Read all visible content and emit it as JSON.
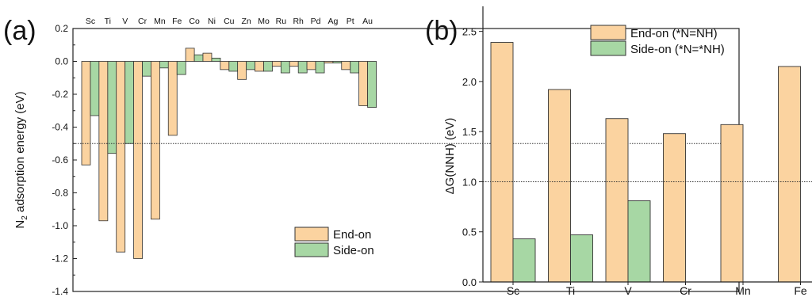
{
  "chart_data": [
    {
      "panel_label": "(a)",
      "type": "bar",
      "categories": [
        "Sc",
        "Ti",
        "V",
        "Cr",
        "Mn",
        "Fe",
        "Co",
        "Ni",
        "Cu",
        "Zn",
        "Mo",
        "Ru",
        "Rh",
        "Pd",
        "Ag",
        "Pt",
        "Au"
      ],
      "series": [
        {
          "name": "End-on",
          "color": "#fbd3a0",
          "values": [
            -0.63,
            -0.97,
            -1.16,
            -1.2,
            -0.96,
            -0.45,
            0.08,
            0.05,
            -0.05,
            -0.11,
            -0.06,
            -0.03,
            -0.03,
            -0.05,
            -0.01,
            -0.05,
            -0.27
          ]
        },
        {
          "name": "Side-on",
          "color": "#a7d7a4",
          "values": [
            -0.33,
            -0.56,
            -0.5,
            -0.09,
            -0.04,
            -0.08,
            0.04,
            0.02,
            -0.06,
            -0.05,
            -0.06,
            -0.07,
            -0.07,
            -0.07,
            -0.01,
            -0.07,
            -0.28
          ]
        }
      ],
      "ylabel_main": "N",
      "ylabel_sub": "2",
      "ylabel_rest": " adsorption energy (eV)",
      "ylim": [
        -1.4,
        0.2
      ],
      "yticks": [
        -1.4,
        -1.2,
        -1.0,
        -0.8,
        -0.6,
        -0.4,
        -0.2,
        0.0,
        0.2
      ],
      "ytick_labels": [
        "-1.4",
        "-1.2",
        "-1.0",
        "-0.8",
        "-0.6",
        "-0.4",
        "-0.2",
        "0.0",
        "0.2"
      ],
      "reference_line": -0.5,
      "legend_position": "bottom-right",
      "category_labels_position": "top"
    },
    {
      "panel_label": "(b)",
      "type": "bar",
      "categories": [
        "Sc",
        "Ti",
        "V",
        "Cr",
        "Mn",
        "Fe"
      ],
      "series": [
        {
          "name": "End-on (*N=NH)",
          "color": "#fbd3a0",
          "values": [
            2.39,
            1.92,
            1.63,
            1.48,
            1.57,
            2.15
          ]
        },
        {
          "name": "Side-on (*N=*NH)",
          "color": "#a7d7a4",
          "values": [
            0.43,
            0.47,
            0.81,
            null,
            null,
            null
          ]
        }
      ],
      "ylabel": "ΔG(NNH) (eV)",
      "ylim": [
        0,
        2.75
      ],
      "yticks": [
        0.0,
        0.5,
        1.0,
        1.5,
        2.0,
        2.5
      ],
      "ytick_labels": [
        "0.0",
        "0.5",
        "1.0",
        "1.5",
        "2.0",
        "2.5"
      ],
      "reference_line": 1.0,
      "legend_position": "top-right"
    }
  ]
}
